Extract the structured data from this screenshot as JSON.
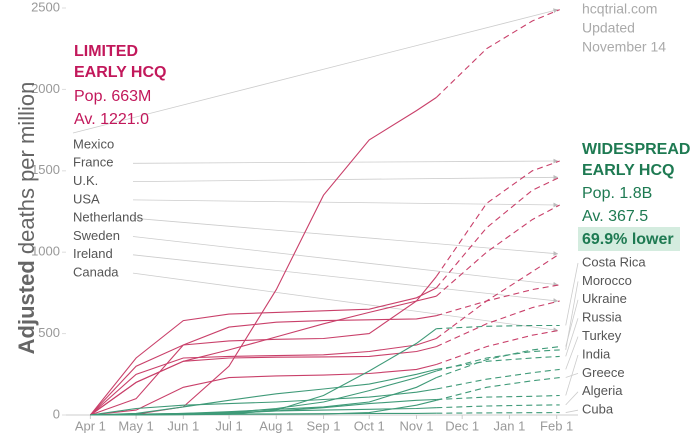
{
  "chart_data": {
    "type": "line",
    "y_label_bold": "Adjusted",
    "y_label": "deaths per million",
    "source": "hcqtrial.com",
    "updated": [
      "Updated",
      "November 14"
    ],
    "limited": {
      "title": [
        "LIMITED",
        "EARLY HCQ"
      ],
      "population": "Pop. 663M",
      "average": "Av. 1221.0",
      "color": "#c2185b"
    },
    "widespread": {
      "title": [
        "WIDESPREAD",
        "EARLY HCQ"
      ],
      "population": "Pop. 1.8B",
      "average": "Av. 367.5",
      "difference": "69.9% lower",
      "color": "#1e7a52"
    },
    "xlim": [
      -16,
      320
    ],
    "xticks": [
      {
        "value": 0,
        "label": "Apr 1"
      },
      {
        "value": 30,
        "label": "May 1"
      },
      {
        "value": 61,
        "label": "Jun 1"
      },
      {
        "value": 91,
        "label": "Jul 1"
      },
      {
        "value": 122,
        "label": "Aug 1"
      },
      {
        "value": 153,
        "label": "Sep 1"
      },
      {
        "value": 183,
        "label": "Oct 1"
      },
      {
        "value": 214,
        "label": "Nov 1"
      },
      {
        "value": 244,
        "label": "Dec 1"
      },
      {
        "value": 275,
        "label": "Jan 1"
      },
      {
        "value": 306,
        "label": "Feb 1"
      }
    ],
    "ylim": [
      0,
      2500
    ],
    "yticks": [
      0,
      500,
      1000,
      1500,
      2000,
      2500
    ],
    "x": [
      0,
      30,
      61,
      91,
      122,
      153,
      183,
      214,
      227,
      260,
      290,
      308
    ],
    "series": [
      {
        "name": "Mexico",
        "group": "limited",
        "color": "#c9406a",
        "values": [
          0,
          5,
          50,
          300,
          770,
          1350,
          1690,
          1870,
          1950,
          null,
          null,
          null
        ],
        "projected": [
          null,
          null,
          null,
          null,
          null,
          null,
          null,
          null,
          1950,
          2250,
          2420,
          2490
        ]
      },
      {
        "name": "France",
        "group": "limited",
        "color": "#c9406a",
        "values": [
          0,
          300,
          430,
          455,
          465,
          470,
          500,
          700,
          850,
          null,
          null,
          null
        ],
        "projected": [
          null,
          null,
          null,
          null,
          null,
          null,
          null,
          null,
          850,
          1300,
          1500,
          1560
        ]
      },
      {
        "name": "U.K.",
        "group": "limited",
        "color": "#c9406a",
        "values": [
          0,
          350,
          580,
          620,
          630,
          640,
          650,
          720,
          780,
          null,
          null,
          null
        ],
        "projected": [
          null,
          null,
          null,
          null,
          null,
          null,
          null,
          null,
          780,
          1150,
          1380,
          1460
        ]
      },
      {
        "name": "USA",
        "group": "limited",
        "color": "#c9406a",
        "values": [
          0,
          200,
          330,
          400,
          480,
          560,
          630,
          700,
          730,
          null,
          null,
          null
        ],
        "projected": [
          null,
          null,
          null,
          null,
          null,
          null,
          null,
          null,
          730,
          1000,
          1200,
          1290
        ]
      },
      {
        "name": "Netherlands",
        "group": "limited",
        "color": "#c9406a",
        "values": [
          0,
          250,
          350,
          360,
          365,
          370,
          390,
          430,
          470,
          null,
          null,
          null
        ],
        "projected": [
          null,
          null,
          null,
          null,
          null,
          null,
          null,
          null,
          470,
          700,
          880,
          990
        ]
      },
      {
        "name": "Sweden",
        "group": "limited",
        "color": "#c9406a",
        "values": [
          0,
          100,
          430,
          540,
          570,
          580,
          585,
          590,
          610,
          null,
          null,
          null
        ],
        "projected": [
          null,
          null,
          null,
          null,
          null,
          null,
          null,
          null,
          610,
          700,
          770,
          800
        ]
      },
      {
        "name": "Ireland",
        "group": "limited",
        "color": "#c9406a",
        "values": [
          0,
          200,
          330,
          350,
          355,
          357,
          360,
          390,
          420,
          null,
          null,
          null
        ],
        "projected": [
          null,
          null,
          null,
          null,
          null,
          null,
          null,
          null,
          420,
          560,
          660,
          700
        ]
      },
      {
        "name": "Canada",
        "group": "limited",
        "color": "#c9406a",
        "values": [
          0,
          30,
          170,
          230,
          240,
          245,
          255,
          280,
          310,
          null,
          null,
          null
        ],
        "projected": [
          null,
          null,
          null,
          null,
          null,
          null,
          null,
          null,
          310,
          420,
          490,
          520
        ]
      },
      {
        "name": "Costa Rica",
        "group": "widespread",
        "color": "#3f9a78",
        "values": [
          0,
          0,
          2,
          5,
          30,
          120,
          270,
          440,
          530,
          null,
          null,
          null
        ],
        "projected": [
          null,
          null,
          null,
          null,
          null,
          null,
          null,
          null,
          530,
          545,
          550,
          550
        ]
      },
      {
        "name": "Morocco",
        "group": "widespread",
        "color": "#3f9a78",
        "values": [
          0,
          5,
          8,
          15,
          40,
          80,
          150,
          230,
          270,
          null,
          null,
          null
        ],
        "projected": [
          null,
          null,
          null,
          null,
          null,
          null,
          null,
          null,
          270,
          350,
          390,
          400
        ]
      },
      {
        "name": "Ukraine",
        "group": "widespread",
        "color": "#3f9a78",
        "values": [
          0,
          3,
          10,
          20,
          35,
          50,
          80,
          170,
          230,
          null,
          null,
          null
        ],
        "projected": [
          null,
          null,
          null,
          null,
          null,
          null,
          null,
          null,
          230,
          340,
          400,
          420
        ]
      },
      {
        "name": "Russia",
        "group": "widespread",
        "color": "#3f9a78",
        "values": [
          0,
          10,
          50,
          90,
          130,
          160,
          190,
          250,
          280,
          null,
          null,
          null
        ],
        "projected": [
          null,
          null,
          null,
          null,
          null,
          null,
          null,
          null,
          280,
          330,
          350,
          360
        ]
      },
      {
        "name": "Turkey",
        "group": "widespread",
        "color": "#3f9a78",
        "values": [
          0,
          40,
          60,
          70,
          80,
          95,
          110,
          140,
          160,
          null,
          null,
          null
        ],
        "projected": [
          null,
          null,
          null,
          null,
          null,
          null,
          null,
          null,
          160,
          220,
          260,
          280
        ]
      },
      {
        "name": "India",
        "group": "widespread",
        "color": "#3f9a78",
        "values": [
          0,
          2,
          5,
          10,
          25,
          45,
          70,
          90,
          95,
          null,
          null,
          null
        ],
        "projected": [
          null,
          null,
          null,
          null,
          null,
          null,
          null,
          null,
          95,
          110,
          115,
          120
        ]
      },
      {
        "name": "Greece",
        "group": "widespread",
        "color": "#3f9a78",
        "values": [
          0,
          1,
          3,
          4,
          5,
          6,
          15,
          60,
          90,
          null,
          null,
          null
        ],
        "projected": [
          null,
          null,
          null,
          null,
          null,
          null,
          null,
          null,
          90,
          170,
          210,
          230
        ]
      },
      {
        "name": "Algeria",
        "group": "widespread",
        "color": "#3f9a78",
        "values": [
          0,
          5,
          10,
          15,
          25,
          30,
          35,
          40,
          45,
          null,
          null,
          null
        ],
        "projected": [
          null,
          null,
          null,
          null,
          null,
          null,
          null,
          null,
          45,
          55,
          60,
          62
        ]
      },
      {
        "name": "Cuba",
        "group": "widespread",
        "color": "#3f9a78",
        "values": [
          0,
          3,
          5,
          6,
          7,
          8,
          9,
          10,
          11,
          null,
          null,
          null
        ],
        "projected": [
          null,
          null,
          null,
          null,
          null,
          null,
          null,
          null,
          11,
          13,
          14,
          15
        ]
      }
    ]
  }
}
